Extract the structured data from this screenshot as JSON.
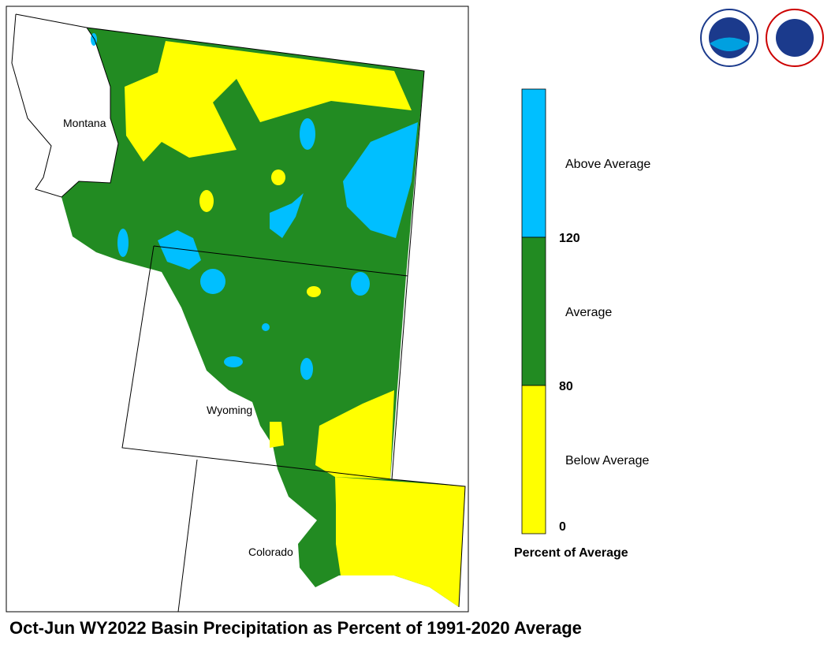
{
  "title": "Oct-Jun WY2022 Basin Precipitation as Percent of 1991-2020 Average",
  "map": {
    "state_labels": [
      "Montana",
      "Wyoming",
      "Colorado"
    ]
  },
  "legend": {
    "title": "Percent of Average",
    "classes": [
      {
        "label": "Above Average",
        "color": "#00bfff"
      },
      {
        "label": "Average",
        "color": "#228b22"
      },
      {
        "label": "Below Average",
        "color": "#ffff00"
      }
    ],
    "ticks": [
      120,
      80,
      0
    ]
  }
}
